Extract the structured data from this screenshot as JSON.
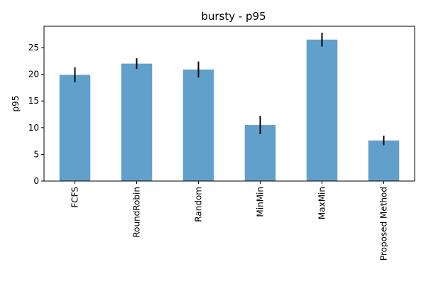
{
  "chart_data": {
    "type": "bar",
    "title": "bursty - p95",
    "xlabel": "",
    "ylabel": "p95",
    "categories": [
      "FCFS",
      "RoundRobin",
      "Random",
      "MinMin",
      "MaxMin",
      "Proposed Method"
    ],
    "values": [
      19.9,
      22.0,
      20.9,
      10.5,
      26.5,
      7.6
    ],
    "error": [
      1.4,
      1.0,
      1.5,
      1.7,
      1.3,
      0.9
    ],
    "ylim": [
      0,
      29
    ],
    "yticks": [
      0,
      5,
      10,
      15,
      20,
      25
    ],
    "grid": false,
    "bar_color": "#62a0cc",
    "error_color": "#000000"
  }
}
